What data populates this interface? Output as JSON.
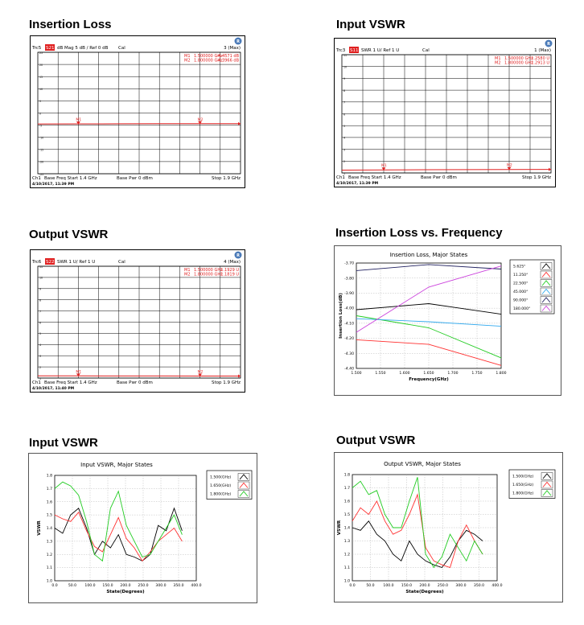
{
  "panels": [
    {
      "heading": "Insertion Loss",
      "trace_id": "Trc5",
      "trace_tag": "S21",
      "format": "dB Mag  5 dB / Ref 0 dB",
      "cal": "Cal",
      "channel_flag": "3 (Max)",
      "markers": [
        {
          "name": "M1",
          "freq": "1.500000 GHz",
          "value": "-4.4571 dB"
        },
        {
          "name": "M2",
          "freq": "1.800000 GHz",
          "value": "-4.3966 dB"
        }
      ],
      "footer_ch": "Ch1",
      "footer_freq": "Base Freq  Start  1.4 GHz",
      "footer_pwr": "Base Pwr  0 dBm",
      "footer_stop": "Stop  1.9 GHz",
      "footer_date": "4/10/2017, 11:39 PM",
      "yticks": [
        "25",
        "20",
        "15",
        "10",
        "5",
        "0",
        "-5",
        "-10",
        "-15",
        "-20",
        "-25"
      ],
      "chart_data": {
        "type": "line",
        "x_range": [
          1.4,
          1.9
        ],
        "y_range": [
          -25,
          25
        ],
        "series": [
          {
            "values_x": [
              1.4,
              1.5,
              1.6,
              1.7,
              1.8,
              1.9
            ],
            "values_y": [
              -4.5,
              -4.46,
              -4.43,
              -4.41,
              -4.4,
              -4.37
            ]
          }
        ],
        "marker_points": [
          {
            "name": "M1",
            "x": 1.5,
            "y": -4.4571
          },
          {
            "name": "M2",
            "x": 1.8,
            "y": -4.3966
          }
        ]
      }
    },
    {
      "heading": "Input VSWR",
      "trace_id": "Trc3",
      "trace_tag": "S11",
      "format": "SWR  1 U/  Ref 1 U",
      "cal": "Cal",
      "channel_flag": "1 (Max)",
      "markers": [
        {
          "name": "M1",
          "freq": "1.500000 GHz",
          "value": "1.2580 U"
        },
        {
          "name": "M2",
          "freq": "1.800000 GHz",
          "value": "1.2913 U"
        }
      ],
      "footer_ch": "Ch1",
      "footer_freq": "Base Freq  Start  1.4 GHz",
      "footer_pwr": "Base Pwr  0 dBm",
      "footer_stop": "Stop  1.9 GHz",
      "footer_date": "4/10/2017, 11:39 PM",
      "yticks": [
        "11",
        "10",
        "9",
        "8",
        "7",
        "6",
        "5",
        "4",
        "3",
        "2",
        "1"
      ],
      "chart_data": {
        "type": "line",
        "x_range": [
          1.4,
          1.9
        ],
        "y_range": [
          1,
          11
        ],
        "series": [
          {
            "values_x": [
              1.4,
              1.5,
              1.6,
              1.7,
              1.8,
              1.9
            ],
            "values_y": [
              1.24,
              1.258,
              1.27,
              1.28,
              1.291,
              1.3
            ]
          }
        ],
        "marker_points": [
          {
            "name": "M1",
            "x": 1.5,
            "y": 1.258
          },
          {
            "name": "M2",
            "x": 1.8,
            "y": 1.2913
          }
        ]
      }
    },
    {
      "heading": "Output VSWR",
      "trace_id": "Trc6",
      "trace_tag": "S22",
      "format": "SWR  1 U/  Ref 1 U",
      "cal": "Cal",
      "channel_flag": "4 (Max)",
      "markers": [
        {
          "name": "M1",
          "freq": "1.500000 GHz",
          "value": "1.1929 U"
        },
        {
          "name": "M2",
          "freq": "1.800000 GHz",
          "value": "1.1819 U"
        }
      ],
      "footer_ch": "Ch1",
      "footer_freq": "Base Freq  Start  1.4 GHz",
      "footer_pwr": "Base Pwr  0 dBm",
      "footer_stop": "Stop  1.9 GHz",
      "footer_date": "4/10/2017, 11:40 PM",
      "yticks": [
        "11",
        "10",
        "9",
        "8",
        "7",
        "6",
        "5",
        "4",
        "3",
        "2",
        "1"
      ],
      "chart_data": {
        "type": "line",
        "x_range": [
          1.4,
          1.9
        ],
        "y_range": [
          1,
          11
        ],
        "series": [
          {
            "values_x": [
              1.4,
              1.5,
              1.6,
              1.7,
              1.8,
              1.9
            ],
            "values_y": [
              1.2,
              1.193,
              1.19,
              1.186,
              1.182,
              1.18
            ]
          }
        ],
        "marker_points": [
          {
            "name": "M1",
            "x": 1.5,
            "y": 1.1929
          },
          {
            "name": "M2",
            "x": 1.8,
            "y": 1.1819
          }
        ]
      }
    }
  ],
  "il_freq": {
    "heading": "Insertion Loss vs. Frequency",
    "chart_data": {
      "type": "line",
      "title": "Insertion Loss, Major States",
      "xlabel": "Frequency(GHz)",
      "ylabel": "Insertion Loss(dB)",
      "xlim": [
        1.5,
        1.8
      ],
      "ylim": [
        -4.4,
        -3.7
      ],
      "xticks": [
        "1.500",
        "1.550",
        "1.600",
        "1.650",
        "1.700",
        "1.750",
        "1.800"
      ],
      "yticks": [
        "-3.70",
        "-3.80",
        "-3.90",
        "-4.00",
        "-4.10",
        "-4.20",
        "-4.30",
        "-4.40"
      ],
      "x": [
        1.5,
        1.65,
        1.8
      ],
      "series": [
        {
          "name": "5.625°",
          "color": "#000000",
          "values": [
            -4.01,
            -3.97,
            -4.04
          ]
        },
        {
          "name": "11.250°",
          "color": "#ff3030",
          "values": [
            -4.21,
            -4.24,
            -4.38
          ]
        },
        {
          "name": "22.500°",
          "color": "#22cc22",
          "values": [
            -4.05,
            -4.13,
            -4.33
          ]
        },
        {
          "name": "45.000°",
          "color": "#33aaee",
          "values": [
            -4.07,
            -4.09,
            -4.12
          ]
        },
        {
          "name": "90.000°",
          "color": "#202060",
          "values": [
            -3.75,
            -3.71,
            -3.74
          ]
        },
        {
          "name": "180.000°",
          "color": "#cc44dd",
          "values": [
            -4.16,
            -3.86,
            -3.72
          ]
        }
      ]
    }
  },
  "input_vswr_states": {
    "heading": "Input VSWR",
    "chart_data": {
      "type": "line",
      "title": "Input VSWR, Major States",
      "xlabel": "State(Degrees)",
      "ylabel": "VSWR",
      "xlim": [
        0,
        400
      ],
      "ylim": [
        1.0,
        1.8
      ],
      "xticks": [
        "0.0",
        "50.0",
        "100.0",
        "150.0",
        "200.0",
        "250.0",
        "300.0",
        "350.0",
        "400.0"
      ],
      "yticks": [
        "1.0",
        "1.1",
        "1.2",
        "1.3",
        "1.4",
        "1.5",
        "1.6",
        "1.7",
        "1.8"
      ],
      "x": [
        0,
        22.5,
        45,
        67.5,
        90,
        112.5,
        135,
        157.5,
        180,
        202.5,
        225,
        247.5,
        270,
        292.5,
        315,
        337.5,
        360
      ],
      "series": [
        {
          "name": "1.500(GHz)",
          "color": "#000000",
          "values": [
            1.4,
            1.36,
            1.5,
            1.55,
            1.4,
            1.2,
            1.3,
            1.25,
            1.35,
            1.2,
            1.18,
            1.15,
            1.2,
            1.42,
            1.38,
            1.55,
            1.38
          ]
        },
        {
          "name": "1.650(GHz)",
          "color": "#ff3030",
          "values": [
            1.5,
            1.47,
            1.45,
            1.52,
            1.38,
            1.26,
            1.22,
            1.35,
            1.48,
            1.32,
            1.25,
            1.15,
            1.22,
            1.3,
            1.35,
            1.4,
            1.3
          ]
        },
        {
          "name": "1.800(GHz)",
          "color": "#22cc22",
          "values": [
            1.7,
            1.75,
            1.72,
            1.65,
            1.45,
            1.2,
            1.15,
            1.55,
            1.68,
            1.42,
            1.3,
            1.18,
            1.2,
            1.3,
            1.4,
            1.5,
            1.35
          ]
        }
      ]
    }
  },
  "output_vswr_states": {
    "heading": "Output VSWR",
    "chart_data": {
      "type": "line",
      "title": "Output VSWR, Major States",
      "xlabel": "State(Degrees)",
      "ylabel": "VSWR",
      "xlim": [
        0,
        400
      ],
      "ylim": [
        1.0,
        1.8
      ],
      "xticks": [
        "0.0",
        "50.0",
        "100.0",
        "150.0",
        "200.0",
        "250.0",
        "300.0",
        "350.0",
        "400.0"
      ],
      "yticks": [
        "1.0",
        "1.1",
        "1.2",
        "1.3",
        "1.4",
        "1.5",
        "1.6",
        "1.7",
        "1.8"
      ],
      "x": [
        0,
        22.5,
        45,
        67.5,
        90,
        112.5,
        135,
        157.5,
        180,
        202.5,
        225,
        247.5,
        270,
        292.5,
        315,
        337.5,
        360
      ],
      "series": [
        {
          "name": "1.500(GHz)",
          "color": "#000000",
          "values": [
            1.4,
            1.38,
            1.45,
            1.35,
            1.3,
            1.2,
            1.15,
            1.3,
            1.2,
            1.15,
            1.12,
            1.1,
            1.18,
            1.3,
            1.38,
            1.35,
            1.3
          ]
        },
        {
          "name": "1.650(GHz)",
          "color": "#ff3030",
          "values": [
            1.45,
            1.55,
            1.5,
            1.6,
            1.45,
            1.35,
            1.38,
            1.5,
            1.65,
            1.25,
            1.15,
            1.12,
            1.1,
            1.3,
            1.42,
            1.3,
            1.2
          ]
        },
        {
          "name": "1.800(GHz)",
          "color": "#22cc22",
          "values": [
            1.7,
            1.75,
            1.65,
            1.68,
            1.5,
            1.4,
            1.4,
            1.6,
            1.78,
            1.2,
            1.1,
            1.18,
            1.35,
            1.25,
            1.15,
            1.3,
            1.2
          ]
        }
      ]
    }
  }
}
